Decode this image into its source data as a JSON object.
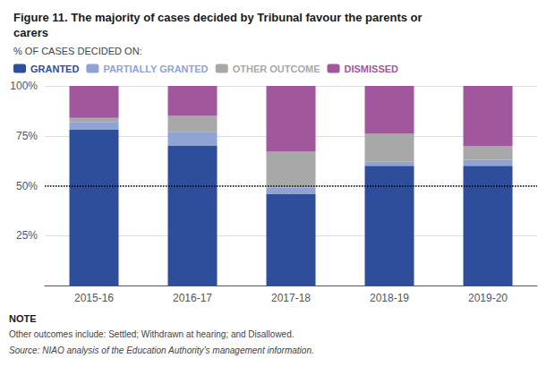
{
  "chart_data": {
    "type": "bar",
    "stacked": true,
    "title": "Figure 11. The majority of cases decided by Tribunal favour the parents or\ncarers",
    "subtitle": "% OF CASES DECIDED ON:",
    "categories": [
      "2015-16",
      "2016-17",
      "2017-18",
      "2018-19",
      "2019-20"
    ],
    "series": [
      {
        "name": "GRANTED",
        "color": "#2e4d9b",
        "values": [
          78,
          70,
          46,
          60,
          60
        ]
      },
      {
        "name": "PARTIALLY GRANTED",
        "color": "#8fa3d4",
        "values": [
          4,
          7,
          3,
          2,
          3
        ]
      },
      {
        "name": "OTHER OUTCOME",
        "color": "#a8a8a8",
        "values": [
          2,
          8,
          18,
          14,
          7
        ]
      },
      {
        "name": "DISMISSED",
        "color": "#a0579b",
        "values": [
          16,
          15,
          33,
          24,
          30
        ]
      }
    ],
    "ylim": [
      0,
      100
    ],
    "yticks": [
      {
        "value": 0,
        "label": ""
      },
      {
        "value": 25,
        "label": "25%"
      },
      {
        "value": 50,
        "label": "50%"
      },
      {
        "value": 75,
        "label": "75%"
      },
      {
        "value": 100,
        "label": "100%"
      }
    ],
    "grid": true,
    "legend": "top",
    "reference_line": 50,
    "note_title": "NOTE",
    "notes": [
      "Other outcomes include: Settled; Withdrawn at hearing; and Disallowed.",
      "Source: NIAO analysis of the Education Authority’s management information."
    ]
  }
}
